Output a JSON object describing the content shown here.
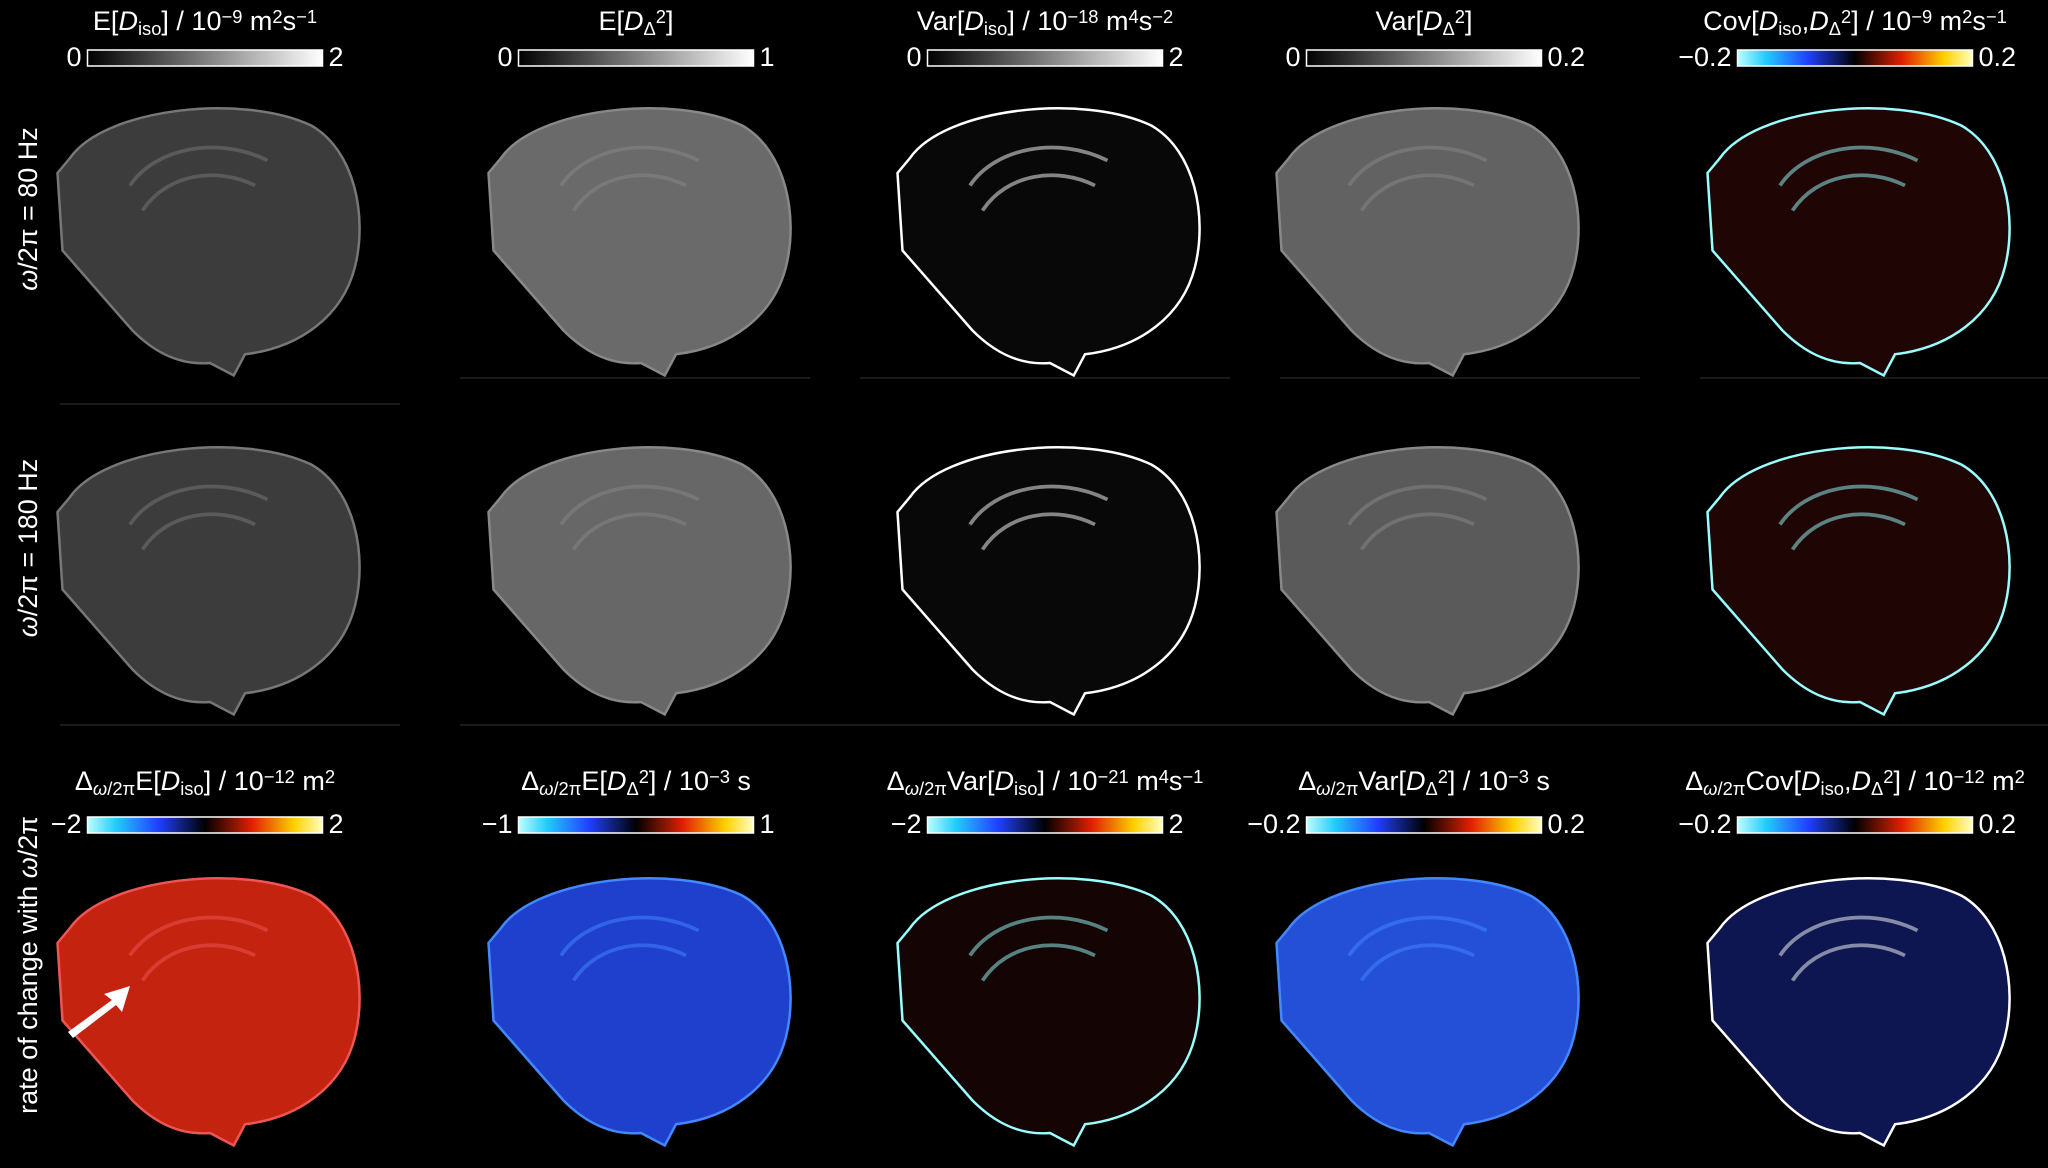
{
  "row_labels": [
    [
      {
        "text": "ω",
        "style": "italic"
      },
      {
        "text": "/2π = 80 Hz"
      }
    ],
    [
      {
        "text": "ω",
        "style": "italic"
      },
      {
        "text": "/2π = 180 Hz"
      }
    ],
    [
      {
        "text": "rate of change with "
      },
      {
        "text": "ω",
        "style": "italic"
      },
      {
        "text": "/2π"
      }
    ]
  ],
  "top_columns": [
    {
      "title": [
        {
          "text": "E["
        },
        {
          "text": "D",
          "style": "italic"
        },
        {
          "text": "iso",
          "style": "sub"
        },
        {
          "text": "] / 10"
        },
        {
          "text": "−9",
          "style": "sup"
        },
        {
          "text": " m"
        },
        {
          "text": "2",
          "style": "sup"
        },
        {
          "text": "s"
        },
        {
          "text": "−1",
          "style": "sup"
        }
      ],
      "colorbar": {
        "colormap": "gray",
        "ticks": [
          0,
          2
        ]
      }
    },
    {
      "title": [
        {
          "text": "E["
        },
        {
          "text": "D",
          "style": "italic"
        },
        {
          "text": "Δ",
          "style": "sub"
        },
        {
          "text": "2",
          "style": "sup"
        },
        {
          "text": "]"
        }
      ],
      "colorbar": {
        "colormap": "gray",
        "ticks": [
          0,
          1
        ]
      }
    },
    {
      "title": [
        {
          "text": "Var["
        },
        {
          "text": "D",
          "style": "italic"
        },
        {
          "text": "iso",
          "style": "sub"
        },
        {
          "text": "] / 10"
        },
        {
          "text": "−18",
          "style": "sup"
        },
        {
          "text": " m"
        },
        {
          "text": "4",
          "style": "sup"
        },
        {
          "text": "s"
        },
        {
          "text": "−2",
          "style": "sup"
        }
      ],
      "colorbar": {
        "colormap": "gray",
        "ticks": [
          0,
          2
        ]
      }
    },
    {
      "title": [
        {
          "text": "Var["
        },
        {
          "text": "D",
          "style": "italic"
        },
        {
          "text": "Δ",
          "style": "sub"
        },
        {
          "text": "2",
          "style": "sup"
        },
        {
          "text": "]"
        }
      ],
      "colorbar": {
        "colormap": "gray",
        "ticks": [
          0,
          0.2
        ]
      }
    },
    {
      "title": [
        {
          "text": "Cov["
        },
        {
          "text": "D",
          "style": "italic"
        },
        {
          "text": "iso",
          "style": "sub"
        },
        {
          "text": ","
        },
        {
          "text": "D",
          "style": "italic"
        },
        {
          "text": "Δ",
          "style": "sub"
        },
        {
          "text": "2",
          "style": "sup"
        },
        {
          "text": "] / 10"
        },
        {
          "text": "−9",
          "style": "sup"
        },
        {
          "text": " m"
        },
        {
          "text": "2",
          "style": "sup"
        },
        {
          "text": "s"
        },
        {
          "text": "−1",
          "style": "sup"
        }
      ],
      "colorbar": {
        "colormap": "coldhot",
        "ticks": [
          {
            "value": -0.2,
            "label": "−0.2"
          },
          0.2
        ]
      }
    }
  ],
  "bottom_columns": [
    {
      "title": [
        {
          "text": "Δ"
        },
        {
          "text": "ω",
          "style": "sub italic"
        },
        {
          "text": "/2π",
          "style": "sub"
        },
        {
          "text": "E["
        },
        {
          "text": "D",
          "style": "italic"
        },
        {
          "text": "iso",
          "style": "sub"
        },
        {
          "text": "] / 10"
        },
        {
          "text": "−12",
          "style": "sup"
        },
        {
          "text": " m"
        },
        {
          "text": "2",
          "style": "sup"
        }
      ],
      "colorbar": {
        "colormap": "coldhot",
        "ticks": [
          {
            "value": -2,
            "label": "−2"
          },
          2
        ]
      }
    },
    {
      "title": [
        {
          "text": "Δ"
        },
        {
          "text": "ω",
          "style": "sub italic"
        },
        {
          "text": "/2π",
          "style": "sub"
        },
        {
          "text": "E["
        },
        {
          "text": "D",
          "style": "italic"
        },
        {
          "text": "Δ",
          "style": "sub"
        },
        {
          "text": "2",
          "style": "sup"
        },
        {
          "text": "] / 10"
        },
        {
          "text": "−3",
          "style": "sup"
        },
        {
          "text": " s"
        }
      ],
      "colorbar": {
        "colormap": "coldhot",
        "ticks": [
          {
            "value": -1,
            "label": "−1"
          },
          1
        ]
      }
    },
    {
      "title": [
        {
          "text": "Δ"
        },
        {
          "text": "ω",
          "style": "sub italic"
        },
        {
          "text": "/2π",
          "style": "sub"
        },
        {
          "text": "Var["
        },
        {
          "text": "D",
          "style": "italic"
        },
        {
          "text": "iso",
          "style": "sub"
        },
        {
          "text": "] / 10"
        },
        {
          "text": "−21",
          "style": "sup"
        },
        {
          "text": " m"
        },
        {
          "text": "4",
          "style": "sup"
        },
        {
          "text": "s"
        },
        {
          "text": "−1",
          "style": "sup"
        }
      ],
      "colorbar": {
        "colormap": "coldhot",
        "ticks": [
          {
            "value": -2,
            "label": "−2"
          },
          2
        ]
      }
    },
    {
      "title": [
        {
          "text": "Δ"
        },
        {
          "text": "ω",
          "style": "sub italic"
        },
        {
          "text": "/2π",
          "style": "sub"
        },
        {
          "text": "Var["
        },
        {
          "text": "D",
          "style": "italic"
        },
        {
          "text": "Δ",
          "style": "sub"
        },
        {
          "text": "2",
          "style": "sup"
        },
        {
          "text": "] / 10"
        },
        {
          "text": "−3",
          "style": "sup"
        },
        {
          "text": " s"
        }
      ],
      "colorbar": {
        "colormap": "coldhot",
        "ticks": [
          {
            "value": -0.2,
            "label": "−0.2"
          },
          0.2
        ]
      }
    },
    {
      "title": [
        {
          "text": "Δ"
        },
        {
          "text": "ω",
          "style": "sub italic"
        },
        {
          "text": "/2π",
          "style": "sub"
        },
        {
          "text": "Cov["
        },
        {
          "text": "D",
          "style": "italic"
        },
        {
          "text": "iso",
          "style": "sub"
        },
        {
          "text": ","
        },
        {
          "text": "D",
          "style": "italic"
        },
        {
          "text": "Δ",
          "style": "sub"
        },
        {
          "text": "2",
          "style": "sup"
        },
        {
          "text": "] / 10"
        },
        {
          "text": "−12",
          "style": "sup"
        },
        {
          "text": " m"
        },
        {
          "text": "2",
          "style": "sup"
        }
      ],
      "colorbar": {
        "colormap": "coldhot",
        "ticks": [
          {
            "value": -0.2,
            "label": "−0.2"
          },
          0.2
        ]
      }
    }
  ]
}
